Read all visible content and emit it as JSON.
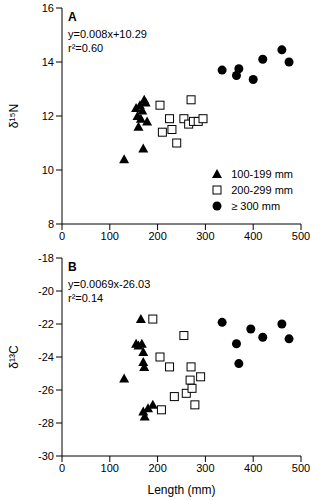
{
  "chart_data": [
    {
      "type": "scatter",
      "title": "A",
      "ylabel": "δ¹⁵N",
      "annotations": [
        "y=0.008x+10.29",
        "r²=0.60"
      ],
      "xlim": [
        0,
        500
      ],
      "xticks": [
        0,
        100,
        200,
        300,
        400,
        500
      ],
      "ylim": [
        8,
        16
      ],
      "yticks": [
        8,
        10,
        12,
        14,
        16
      ],
      "grid": false,
      "legend": "lower right",
      "series": [
        {
          "name": "100-199 mm",
          "color": "#000000",
          "marker": "triangle",
          "x": [
            130,
            155,
            158,
            160,
            163,
            165,
            168,
            170,
            172,
            175,
            178
          ],
          "values": [
            10.4,
            12.3,
            12.0,
            11.6,
            12.4,
            11.9,
            12.2,
            10.8,
            12.6,
            12.5,
            11.8
          ]
        },
        {
          "name": "200-299 mm",
          "color": "#000000",
          "marker": "square_open",
          "x": [
            205,
            210,
            225,
            230,
            240,
            255,
            265,
            270,
            275,
            285,
            295
          ],
          "values": [
            12.4,
            11.4,
            11.9,
            11.5,
            11.0,
            11.9,
            11.7,
            12.6,
            11.8,
            11.8,
            11.9
          ]
        },
        {
          "name": "≥ 300 mm",
          "color": "#000000",
          "marker": "circle",
          "x": [
            335,
            365,
            370,
            400,
            420,
            460,
            475
          ],
          "values": [
            13.7,
            13.5,
            13.75,
            13.35,
            14.1,
            14.45,
            14.0
          ]
        }
      ]
    },
    {
      "type": "scatter",
      "title": "B",
      "xlabel": "Length (mm)",
      "ylabel": "δ¹³C",
      "annotations": [
        "y=0.0069x-26.03",
        "r²=0.14"
      ],
      "xlim": [
        0,
        500
      ],
      "xticks": [
        0,
        100,
        200,
        300,
        400,
        500
      ],
      "ylim": [
        -30,
        -18
      ],
      "yticks": [
        -30,
        -28,
        -26,
        -24,
        -22,
        -20,
        -18
      ],
      "grid": false,
      "series": [
        {
          "name": "100-199 mm",
          "color": "#000000",
          "marker": "triangle",
          "x": [
            130,
            155,
            160,
            165,
            167,
            170,
            170,
            172,
            170,
            173,
            180,
            190
          ],
          "values": [
            -25.3,
            -23.2,
            -23.3,
            -21.7,
            -23.2,
            -23.7,
            -24.3,
            -24.6,
            -27.3,
            -27.6,
            -27.1,
            -26.9
          ]
        },
        {
          "name": "200-299 mm",
          "color": "#000000",
          "marker": "square_open",
          "x": [
            190,
            205,
            208,
            225,
            235,
            255,
            260,
            268,
            270,
            272,
            278,
            290
          ],
          "values": [
            -21.7,
            -24.0,
            -27.2,
            -24.6,
            -26.4,
            -22.7,
            -26.2,
            -25.4,
            -24.6,
            -25.9,
            -26.9,
            -25.2
          ]
        },
        {
          "name": "≥ 300 mm",
          "color": "#000000",
          "marker": "circle",
          "x": [
            335,
            365,
            370,
            395,
            420,
            460,
            475
          ],
          "values": [
            -21.9,
            -23.2,
            -24.4,
            -22.3,
            -22.8,
            -22.0,
            -22.9
          ]
        }
      ]
    }
  ]
}
